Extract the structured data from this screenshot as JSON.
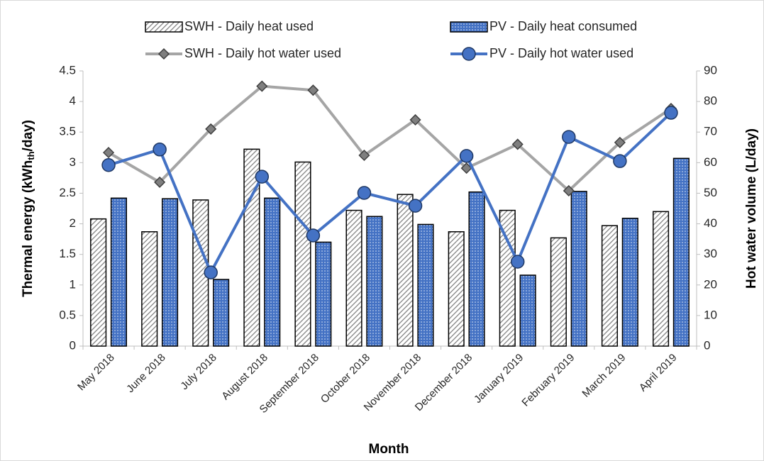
{
  "chart_data": {
    "type": "bar_line",
    "xlabel": "Month",
    "ylabel": [
      "Thermal energy (kWh",
      "th",
      "/day)"
    ],
    "y2label": "Hot water volume (L/day)",
    "categories": [
      "May 2018",
      "June 2018",
      "July 2018",
      "August 2018",
      "September 2018",
      "October 2018",
      "November 2018",
      "December 2018",
      "January 2019",
      "February 2019",
      "March 2019",
      "April 2019"
    ],
    "series": [
      {
        "name": "SWH - Daily heat used",
        "kind": "bar",
        "color": "#7f7f7f",
        "values": [
          2.08,
          1.87,
          2.39,
          3.22,
          3.01,
          2.22,
          2.48,
          1.87,
          2.22,
          1.77,
          1.97,
          2.2
        ]
      },
      {
        "name": "PV - Daily heat consumed",
        "kind": "bar",
        "color": "#4472c4",
        "values": [
          2.42,
          2.41,
          1.09,
          2.42,
          1.7,
          2.12,
          1.99,
          2.52,
          1.16,
          2.53,
          2.09,
          3.07
        ]
      },
      {
        "name": "SWH - Daily hot water used",
        "kind": "line",
        "marker": "diamond",
        "axis": "y2",
        "color": "#a5a5a5",
        "values": [
          63.3,
          53.6,
          71,
          85,
          83.7,
          62.4,
          74,
          58.2,
          66,
          50.8,
          66.6,
          77.7
        ]
      },
      {
        "name": "PV - Daily hot water used",
        "kind": "line",
        "marker": "circle",
        "axis": "y2",
        "color": "#4472c4",
        "values": [
          59.2,
          64.3,
          24.1,
          55.4,
          36.2,
          50.1,
          45.9,
          62.2,
          27.6,
          68.4,
          60.5,
          76.3
        ]
      }
    ],
    "ylim": [
      0,
      4.5
    ],
    "yticks": [
      0,
      0.5,
      1,
      1.5,
      2,
      2.5,
      3,
      3.5,
      4,
      4.5
    ],
    "y2lim": [
      0,
      90
    ],
    "y2ticks": [
      0,
      10,
      20,
      30,
      40,
      50,
      60,
      70,
      80,
      90
    ],
    "legend": "top",
    "grid": false
  }
}
